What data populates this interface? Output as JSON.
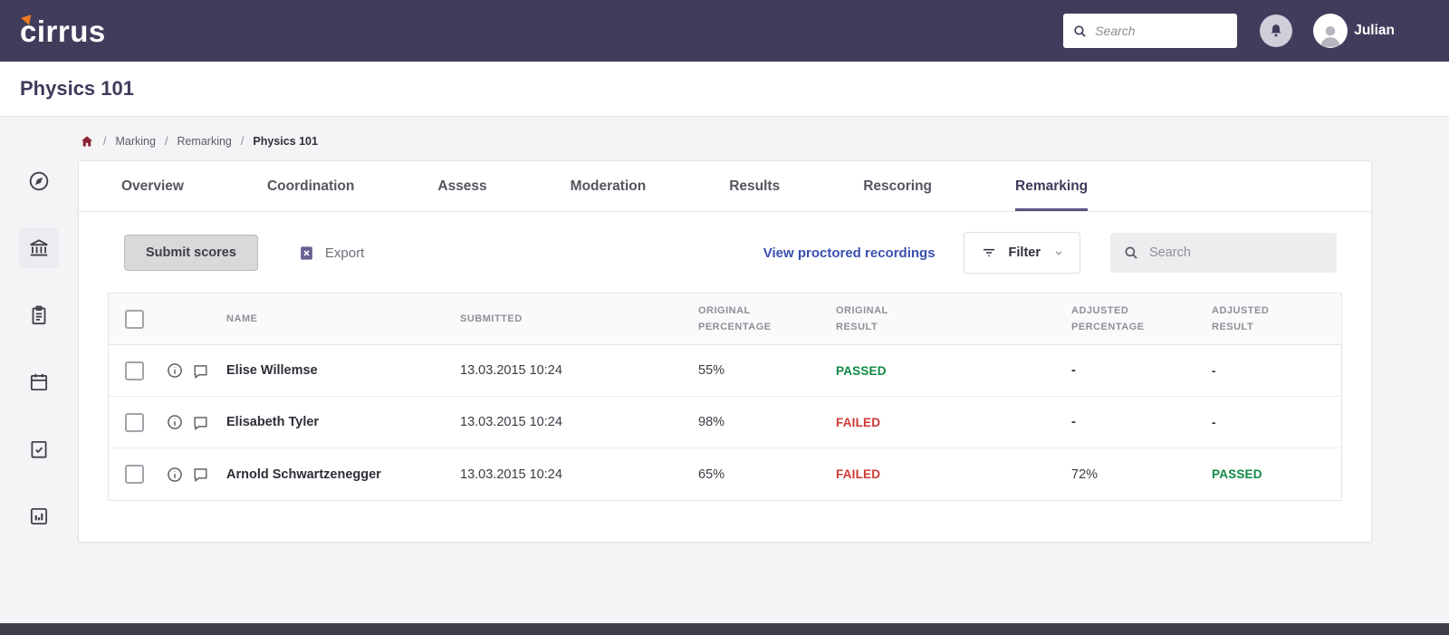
{
  "colors": {
    "navbar": "#403c5c",
    "accent": "#5a5486",
    "passed": "#0f8a44",
    "failed": "#cf3934",
    "link": "#3b4fae",
    "home": "#8b2332",
    "brand_mark": "#e87b1e"
  },
  "navbar": {
    "brand": "cirrus",
    "search_placeholder": "Search",
    "user_name": "Julian"
  },
  "page": {
    "title": "Physics 101"
  },
  "breadcrumb": {
    "items": [
      "Marking",
      "Remarking",
      "Physics 101"
    ]
  },
  "sidebar": {
    "icons": [
      "compass-icon",
      "institution-icon",
      "assignments-icon",
      "calendar-icon",
      "tasks-icon",
      "reports-icon"
    ],
    "active": "institution-icon"
  },
  "tabs": {
    "items": [
      "Overview",
      "Coordination",
      "Assess",
      "Moderation",
      "Results",
      "Rescoring",
      "Remarking"
    ],
    "active": "Remarking"
  },
  "toolbar": {
    "submit_label": "Submit scores",
    "export_label": "Export",
    "recordings_link": "View proctored recordings",
    "filter_label": "Filter",
    "search_placeholder": "Search"
  },
  "table": {
    "headers": [
      "NAME",
      "SUBMITTED",
      "ORIGINAL PERCENTAGE",
      "ORIGINAL RESULT",
      "ADJUSTED PERCENTAGE",
      "ADJUSTED RESULT"
    ],
    "rows": [
      {
        "name": "Elise Willemse",
        "submitted": "13.03.2015 10:24",
        "original_percentage": "55%",
        "original_result": "PASSED",
        "adjusted_percentage": "-",
        "adjusted_result": "-"
      },
      {
        "name": "Elisabeth Tyler",
        "submitted": "13.03.2015 10:24",
        "original_percentage": "98%",
        "original_result": "FAILED",
        "adjusted_percentage": "-",
        "adjusted_result": "-"
      },
      {
        "name": "Arnold Schwartzenegger",
        "submitted": "13.03.2015 10:24",
        "original_percentage": "65%",
        "original_result": "FAILED",
        "adjusted_percentage": "72%",
        "adjusted_result": "PASSED"
      }
    ]
  }
}
